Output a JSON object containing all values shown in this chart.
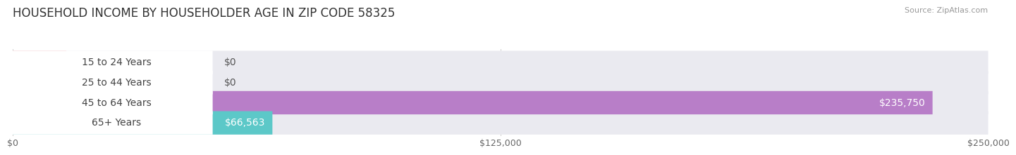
{
  "title": "HOUSEHOLD INCOME BY HOUSEHOLDER AGE IN ZIP CODE 58325",
  "source": "Source: ZipAtlas.com",
  "categories": [
    "15 to 24 Years",
    "25 to 44 Years",
    "45 to 64 Years",
    "65+ Years"
  ],
  "values": [
    0,
    0,
    235750,
    66563
  ],
  "max_value": 250000,
  "bar_colors": [
    "#f0a0a8",
    "#a8c0e8",
    "#b87ec8",
    "#5cc8c8"
  ],
  "track_color": "#eaeaf0",
  "background_color": "#ffffff",
  "value_labels": [
    "$0",
    "$0",
    "$235,750",
    "$66,563"
  ],
  "x_ticks": [
    0,
    125000,
    250000
  ],
  "x_tick_labels": [
    "$0",
    "$125,000",
    "$250,000"
  ],
  "title_fontsize": 12,
  "bar_height": 0.58,
  "label_fontsize": 10,
  "value_fontsize": 10
}
